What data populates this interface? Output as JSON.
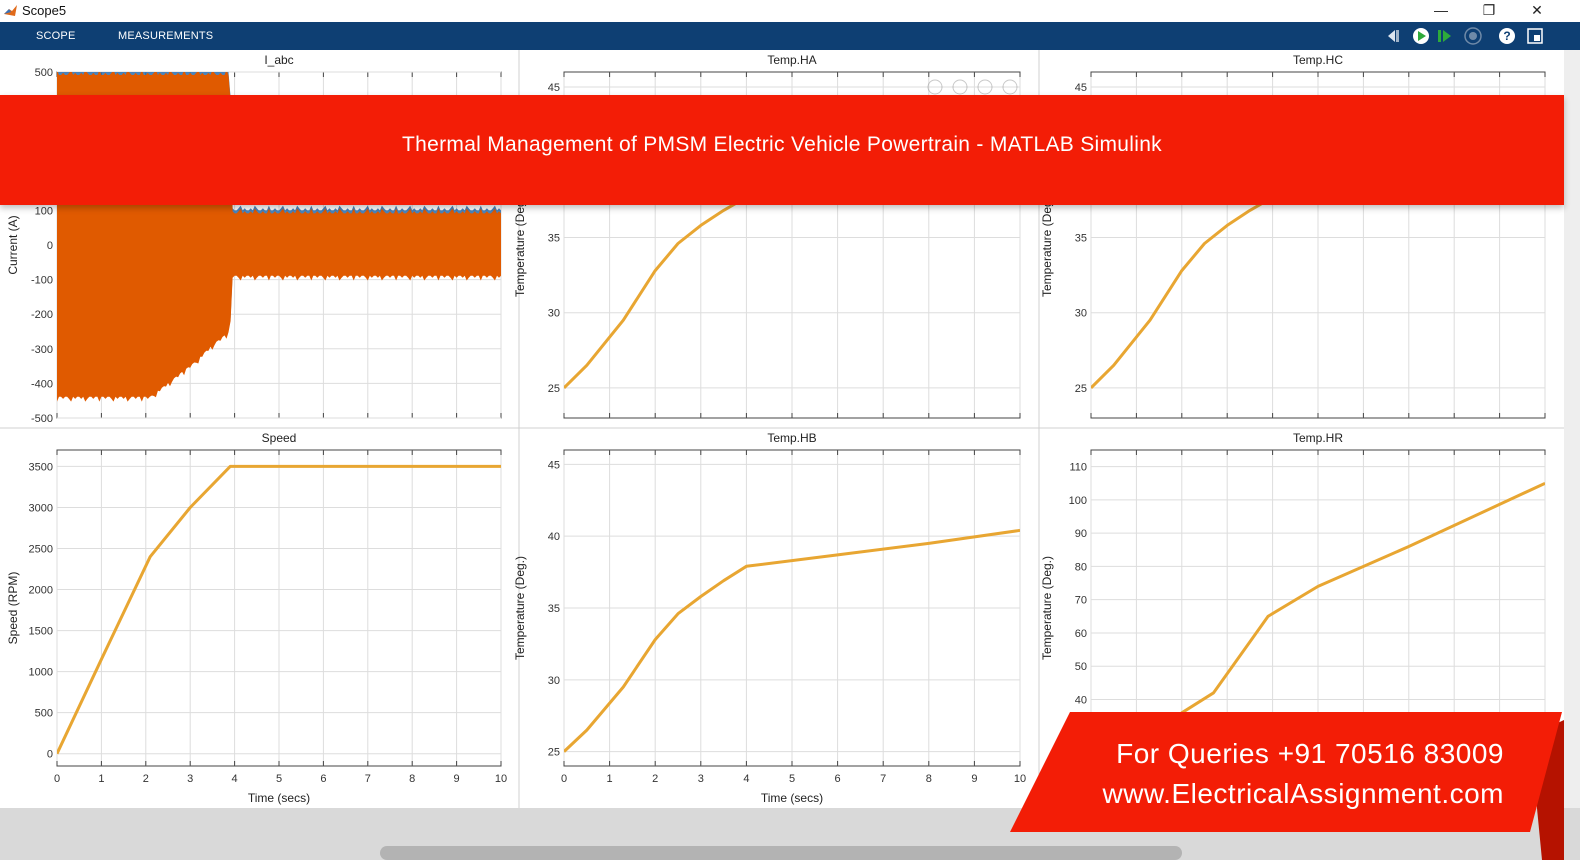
{
  "window": {
    "title": "Scope5",
    "min_icon": "minimize-icon",
    "max_icon": "restore-icon",
    "close_icon": "close-icon"
  },
  "toolstrip": {
    "tabs": [
      "SCOPE",
      "MEASUREMENTS"
    ],
    "icons": [
      "step-back-icon",
      "run-icon",
      "step-forward-icon",
      "stop-icon",
      "help-icon",
      "undock-icon"
    ]
  },
  "colors": {
    "toolstrip": "#0e3f73",
    "banner": "#f31d06",
    "trace_orange": "#e8a632",
    "current_orange": "#e05a00",
    "current_blue": "#2a6fb0"
  },
  "banner": {
    "text": "Thermal Management of PMSM Electric Vehicle Powertrain - MATLAB Simulink"
  },
  "promo": {
    "line1": "For Queries +91 70516 83009",
    "line2": "www.ElectricalAssignment.com"
  },
  "chart_data": [
    {
      "type": "line",
      "title": "I_abc",
      "ylabel": "Current (A)",
      "xlabel": "",
      "ylim": [
        -500,
        500
      ],
      "xlim": [
        0,
        10
      ],
      "yticks": [
        -500,
        -400,
        -300,
        -200,
        -100,
        0,
        100,
        500
      ],
      "grid": true,
      "series": [
        {
          "x": [
            0,
            2.1,
            2.2,
            3.1,
            3.5,
            3.9,
            3.95,
            10
          ],
          "upper": [
            500,
            500,
            500,
            500,
            500,
            500,
            100,
            100
          ],
          "lower": [
            -430,
            -430,
            -420,
            -330,
            -280,
            -240,
            -80,
            -80
          ]
        }
      ]
    },
    {
      "type": "line",
      "title": "Temp.HA",
      "ylabel": "Temperature (Deg.)",
      "xlabel": "",
      "ylim": [
        23,
        46
      ],
      "xlim": [
        0,
        10
      ],
      "yticks": [
        25,
        30,
        35,
        45
      ],
      "grid": true,
      "series": [
        {
          "x": [
            0,
            0.5,
            1.3,
            2.0,
            2.5,
            3.0,
            3.5,
            3.9
          ],
          "y": [
            25,
            26.5,
            29.5,
            32.8,
            34.6,
            35.8,
            36.8,
            37.5
          ]
        }
      ]
    },
    {
      "type": "line",
      "title": "Temp.HC",
      "ylabel": "Temperature (Deg.)",
      "xlabel": "",
      "ylim": [
        23,
        46
      ],
      "xlim": [
        0,
        10
      ],
      "yticks": [
        25,
        30,
        35,
        45
      ],
      "grid": true,
      "series": [
        {
          "x": [
            0,
            0.5,
            1.3,
            2.0,
            2.5,
            3.0,
            3.5,
            3.9
          ],
          "y": [
            25,
            26.5,
            29.5,
            32.8,
            34.6,
            35.8,
            36.8,
            37.5
          ]
        }
      ]
    },
    {
      "type": "line",
      "title": "Speed",
      "ylabel": "Speed (RPM)",
      "xlabel": "Time (secs)",
      "ylim": [
        -150,
        3700
      ],
      "xlim": [
        0,
        10
      ],
      "xticks": [
        0,
        1,
        2,
        3,
        4,
        5,
        6,
        7,
        8,
        9,
        10
      ],
      "yticks": [
        0,
        500,
        1000,
        1500,
        2000,
        2500,
        3000,
        3500
      ],
      "grid": true,
      "series": [
        {
          "x": [
            0,
            1,
            2.1,
            3,
            3.9,
            10
          ],
          "y": [
            0,
            1150,
            2400,
            3000,
            3500,
            3500
          ]
        }
      ]
    },
    {
      "type": "line",
      "title": "Temp.HB",
      "ylabel": "Temperature (Deg.)",
      "xlabel": "Time (secs)",
      "ylim": [
        24,
        46
      ],
      "xlim": [
        0,
        10
      ],
      "xticks": [
        0,
        1,
        2,
        3,
        4,
        5,
        6,
        7,
        8,
        9,
        10
      ],
      "yticks": [
        25,
        30,
        35,
        40,
        45
      ],
      "grid": true,
      "series": [
        {
          "x": [
            0,
            0.5,
            1.3,
            2.0,
            2.5,
            3.0,
            3.5,
            4.0,
            6.0,
            8.0,
            10.0
          ],
          "y": [
            25,
            26.5,
            29.5,
            32.8,
            34.6,
            35.8,
            36.9,
            37.9,
            38.7,
            39.5,
            40.4
          ]
        }
      ]
    },
    {
      "type": "line",
      "title": "Temp.HR",
      "ylabel": "Temperature (Deg.)",
      "xlabel": "",
      "ylim": [
        20,
        115
      ],
      "xlim": [
        0,
        10
      ],
      "yticks": [
        40,
        50,
        60,
        70,
        80,
        90,
        100,
        110
      ],
      "grid": true,
      "series": [
        {
          "x": [
            0,
            1.0,
            1.7,
            2.0,
            2.7,
            3.9,
            5.0,
            7.0,
            10.0
          ],
          "y": [
            25,
            27,
            32,
            36,
            42,
            65,
            74,
            86,
            105
          ]
        }
      ]
    }
  ]
}
